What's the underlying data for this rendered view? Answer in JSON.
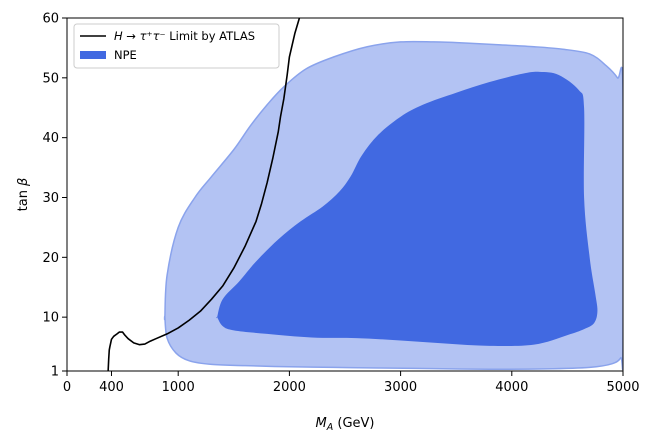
{
  "chart_data": {
    "type": "line",
    "xlabel": "M_A (GeV)",
    "ylabel": "tan β",
    "xlim": [
      0,
      5000
    ],
    "ylim": [
      1,
      60
    ],
    "xticks": [
      0,
      400,
      1000,
      2000,
      3000,
      4000,
      5000
    ],
    "xtick_labels": [
      "0",
      "400",
      "1000",
      "2000",
      "3000",
      "4000",
      "5000"
    ],
    "yticks": [
      1,
      10,
      20,
      30,
      40,
      50,
      60
    ],
    "ytick_labels": [
      "1",
      "10",
      "20",
      "30",
      "40",
      "50",
      "60"
    ],
    "grid": false,
    "legend_position": "upper-left",
    "series": [
      {
        "name": "H → τ⁺τ⁻ Limit by ATLAS",
        "kind": "line",
        "color": "#000000",
        "x": [
          370,
          375,
          380,
          385,
          400,
          420,
          450,
          470,
          500,
          520,
          550,
          600,
          650,
          700,
          750,
          800,
          900,
          1000,
          1100,
          1200,
          1300,
          1400,
          1500,
          1600,
          1700,
          1750,
          1800,
          1850,
          1900,
          1920,
          1950,
          1980,
          2000,
          2050,
          2090
        ],
        "y": [
          1,
          3,
          4.5,
          5,
          6.3,
          6.8,
          7.2,
          7.5,
          7.5,
          7.0,
          6.4,
          5.7,
          5.4,
          5.5,
          6.0,
          6.4,
          7.2,
          8.2,
          9.5,
          11.0,
          13.0,
          15.2,
          18.2,
          21.8,
          26.0,
          29.0,
          32.5,
          36.5,
          41.0,
          43.5,
          46.5,
          50.5,
          53.5,
          57.5,
          60
        ]
      },
      {
        "name": "NPE",
        "kind": "filled-contour",
        "color_outer": "#b3c3f3",
        "color_outer_edge": "#8aa3ec",
        "color_inner": "#4169e1",
        "outer": {
          "x": [
            880,
            900,
            1000,
            1150,
            1300,
            1500,
            1650,
            1800,
            1950,
            2150,
            2400,
            2700,
            3000,
            3300,
            3600,
            3900,
            4200,
            4450,
            4700,
            4850,
            4950,
            5000,
            5000,
            4980,
            4900,
            4700,
            4300,
            3800,
            3300,
            2800,
            2400,
            2000,
            1600,
            1300,
            1100,
            980,
            900,
            880
          ],
          "y": [
            10,
            17,
            25,
            30,
            33.5,
            38,
            42,
            45.5,
            48.5,
            51.5,
            53.5,
            55.2,
            56,
            56,
            55.8,
            55.5,
            55.2,
            54.8,
            54,
            52,
            50,
            48,
            5,
            3.2,
            2.2,
            1.6,
            1.35,
            1.3,
            1.4,
            1.5,
            1.6,
            1.7,
            1.9,
            2.1,
            2.7,
            4,
            6.5,
            10
          ]
        },
        "inner": {
          "x": [
            1350,
            1400,
            1550,
            1700,
            1900,
            2100,
            2300,
            2450,
            2550,
            2650,
            2800,
            3000,
            3200,
            3500,
            3800,
            4100,
            4250,
            4420,
            4600,
            4650,
            4650,
            4700,
            4750,
            4770,
            4740,
            4650,
            4500,
            4200,
            3800,
            3400,
            3000,
            2600,
            2200,
            1800,
            1500,
            1400,
            1350
          ],
          "y": [
            10,
            13,
            16,
            19.3,
            23,
            26,
            28.5,
            31,
            33.5,
            37,
            40.5,
            43.5,
            45.5,
            47.5,
            49.3,
            50.7,
            51,
            50.5,
            48,
            45,
            30,
            20,
            14,
            11,
            9,
            8,
            7,
            5.4,
            5.2,
            5.6,
            6.1,
            6.5,
            6.6,
            7.2,
            7.8,
            8.5,
            10
          ]
        }
      }
    ]
  }
}
